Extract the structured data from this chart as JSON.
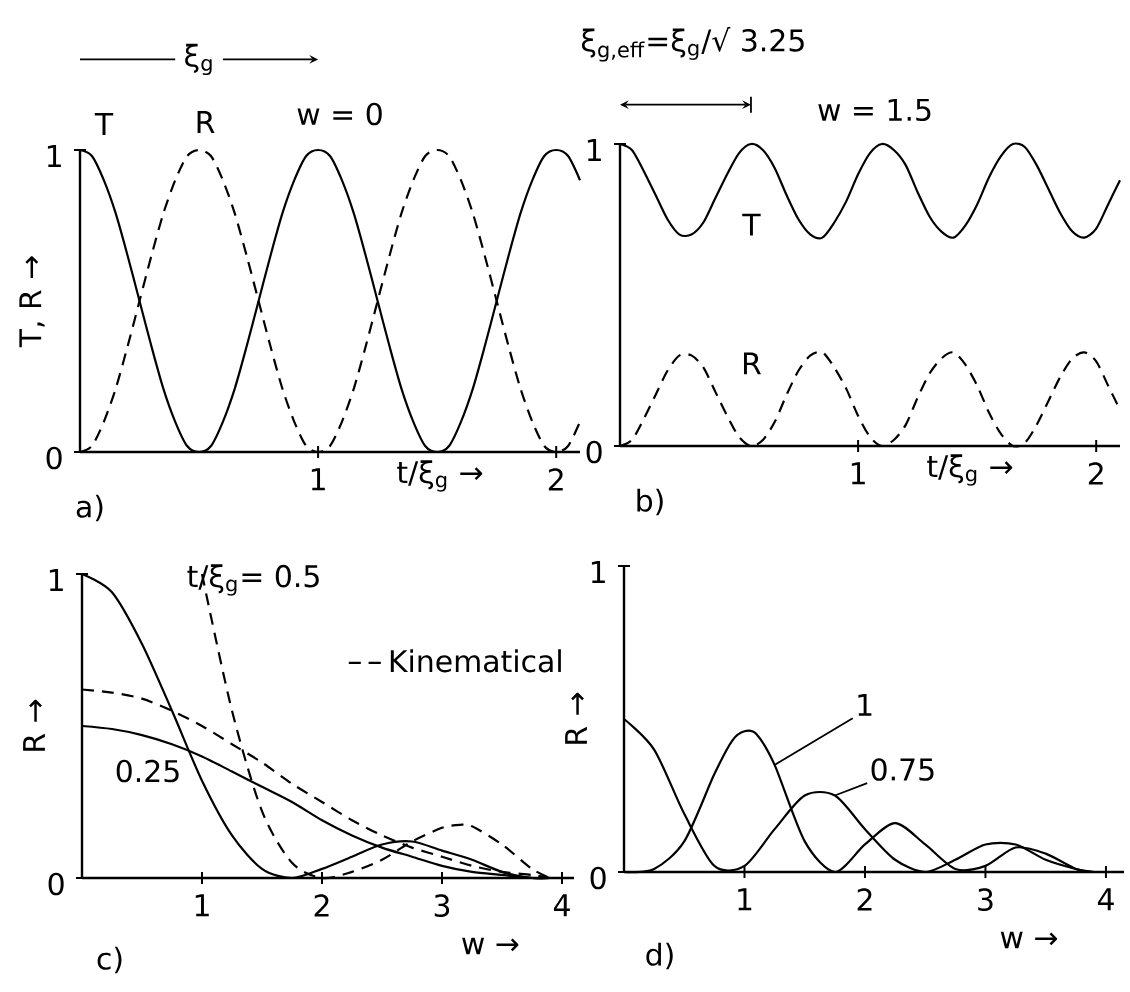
{
  "chart_data": [
    {
      "type": "line",
      "title": "w = 0",
      "xlabel": "t/ξ$_{g}$ →",
      "ylabel": "T, R →",
      "annotations": [
        "ξ$_{g}$",
        "a)"
      ],
      "xlim": [
        0,
        2.1
      ],
      "ylim": [
        0,
        1
      ],
      "xticks": [
        1,
        2
      ],
      "yticks": [
        0,
        1
      ],
      "series": [
        {
          "name": "T",
          "color": "#000000",
          "line_style": "solid",
          "x": [
            0,
            0.05,
            0.1,
            0.15,
            0.2,
            0.25,
            0.3,
            0.35,
            0.4,
            0.45,
            0.5,
            0.55,
            0.6,
            0.65,
            0.7,
            0.75,
            0.8,
            0.85,
            0.9,
            0.95,
            1,
            1.05,
            1.1,
            1.15,
            1.2,
            1.25,
            1.3,
            1.35,
            1.4,
            1.45,
            1.5,
            1.55,
            1.6,
            1.65,
            1.7,
            1.75,
            1.8,
            1.85,
            1.9,
            1.95,
            2,
            2.05,
            2.1
          ],
          "values": [
            1,
            0.98,
            0.9,
            0.79,
            0.65,
            0.5,
            0.35,
            0.21,
            0.1,
            0.02,
            0,
            0.02,
            0.1,
            0.21,
            0.35,
            0.5,
            0.65,
            0.79,
            0.9,
            0.98,
            1,
            0.98,
            0.9,
            0.79,
            0.65,
            0.5,
            0.35,
            0.21,
            0.1,
            0.02,
            0,
            0.02,
            0.1,
            0.21,
            0.35,
            0.5,
            0.65,
            0.79,
            0.9,
            0.98,
            1,
            0.98,
            0.9
          ]
        },
        {
          "name": "R",
          "color": "#000000",
          "line_style": "dashed",
          "x": [
            0,
            0.05,
            0.1,
            0.15,
            0.2,
            0.25,
            0.3,
            0.35,
            0.4,
            0.45,
            0.5,
            0.55,
            0.6,
            0.65,
            0.7,
            0.75,
            0.8,
            0.85,
            0.9,
            0.95,
            1,
            1.05,
            1.1,
            1.15,
            1.2,
            1.25,
            1.3,
            1.35,
            1.4,
            1.45,
            1.5,
            1.55,
            1.6,
            1.65,
            1.7,
            1.75,
            1.8,
            1.85,
            1.9,
            1.95,
            2,
            2.05,
            2.1
          ],
          "values": [
            0,
            0.02,
            0.1,
            0.21,
            0.35,
            0.5,
            0.65,
            0.79,
            0.9,
            0.98,
            1,
            0.98,
            0.9,
            0.79,
            0.65,
            0.5,
            0.35,
            0.21,
            0.1,
            0.02,
            0,
            0.02,
            0.1,
            0.21,
            0.35,
            0.5,
            0.65,
            0.79,
            0.9,
            0.98,
            1,
            0.98,
            0.9,
            0.79,
            0.65,
            0.5,
            0.35,
            0.21,
            0.1,
            0.02,
            0,
            0.02,
            0.1
          ]
        }
      ]
    },
    {
      "type": "line",
      "title": "w = 1.5",
      "xlabel": "t/ξ$_{g}$ →",
      "annotations": [
        "ξ$_{g,eff}$=ξ$_{g}$/√ 3.25",
        "b)"
      ],
      "xlim": [
        0,
        2.1
      ],
      "ylim": [
        0,
        1
      ],
      "xticks": [
        1,
        2
      ],
      "yticks": [
        0,
        1
      ],
      "series": [
        {
          "name": "T",
          "color": "#000000",
          "line_style": "solid",
          "x": [
            0,
            0.05,
            0.1,
            0.15,
            0.2,
            0.25,
            0.3,
            0.35,
            0.4,
            0.45,
            0.5,
            0.55,
            0.6,
            0.65,
            0.7,
            0.75,
            0.8,
            0.85,
            0.9,
            0.95,
            1,
            1.05,
            1.1,
            1.15,
            1.2,
            1.25,
            1.3,
            1.35,
            1.4,
            1.45,
            1.5,
            1.55,
            1.6,
            1.65,
            1.7,
            1.75,
            1.8,
            1.85,
            1.9,
            1.95,
            2,
            2.05,
            2.1
          ],
          "values": [
            1,
            0.98,
            0.91,
            0.83,
            0.75,
            0.7,
            0.7,
            0.74,
            0.82,
            0.9,
            0.97,
            1,
            0.98,
            0.92,
            0.83,
            0.75,
            0.7,
            0.69,
            0.74,
            0.81,
            0.9,
            0.97,
            1,
            0.98,
            0.93,
            0.84,
            0.76,
            0.71,
            0.69,
            0.73,
            0.8,
            0.89,
            0.96,
            1,
            0.99,
            0.93,
            0.85,
            0.77,
            0.71,
            0.69,
            0.72,
            0.8,
            0.88
          ]
        },
        {
          "name": "R",
          "color": "#000000",
          "line_style": "dashed",
          "x": [
            0,
            0.05,
            0.1,
            0.15,
            0.2,
            0.25,
            0.3,
            0.35,
            0.4,
            0.45,
            0.5,
            0.55,
            0.6,
            0.65,
            0.7,
            0.75,
            0.8,
            0.85,
            0.9,
            0.95,
            1,
            1.05,
            1.1,
            1.15,
            1.2,
            1.25,
            1.3,
            1.35,
            1.4,
            1.45,
            1.5,
            1.55,
            1.6,
            1.65,
            1.7,
            1.75,
            1.8,
            1.85,
            1.9,
            1.95,
            2,
            2.05,
            2.1
          ],
          "values": [
            0,
            0.02,
            0.09,
            0.17,
            0.25,
            0.3,
            0.3,
            0.26,
            0.18,
            0.1,
            0.03,
            0,
            0.02,
            0.08,
            0.17,
            0.25,
            0.3,
            0.31,
            0.26,
            0.19,
            0.1,
            0.03,
            0,
            0.02,
            0.07,
            0.16,
            0.24,
            0.29,
            0.31,
            0.27,
            0.2,
            0.11,
            0.04,
            0,
            0.01,
            0.07,
            0.15,
            0.23,
            0.29,
            0.31,
            0.28,
            0.2,
            0.12
          ]
        }
      ]
    },
    {
      "type": "line",
      "xlabel": "w →",
      "ylabel": "R →",
      "annotations": [
        "c)"
      ],
      "xlim": [
        0,
        4.1
      ],
      "ylim": [
        0,
        1
      ],
      "xticks": [
        1,
        2,
        3,
        4
      ],
      "yticks": [
        0,
        1
      ],
      "legend": "top right",
      "series": [
        {
          "name": "t/ξ$_{g}$= 0.5",
          "color": "#000000",
          "line_style": "solid",
          "x": [
            0,
            0.25,
            0.5,
            0.75,
            1,
            1.25,
            1.5,
            1.75,
            2,
            2.25,
            2.5,
            2.75,
            3,
            3.25,
            3.5,
            3.75,
            3.9
          ],
          "values": [
            1,
            0.94,
            0.77,
            0.55,
            0.32,
            0.14,
            0.03,
            0,
            0.03,
            0.07,
            0.11,
            0.12,
            0.09,
            0.06,
            0.02,
            0,
            0
          ]
        },
        {
          "name": "0.25",
          "color": "#000000",
          "line_style": "solid",
          "x": [
            0,
            0.25,
            0.5,
            0.75,
            1,
            1.25,
            1.5,
            1.75,
            2,
            2.25,
            2.5,
            2.75,
            3,
            3.25,
            3.5,
            3.75,
            3.9
          ],
          "values": [
            0.5,
            0.49,
            0.47,
            0.44,
            0.4,
            0.35,
            0.3,
            0.25,
            0.19,
            0.14,
            0.1,
            0.07,
            0.04,
            0.02,
            0.01,
            0,
            0
          ]
        },
        {
          "name": "Kinematical",
          "color": "#000000",
          "line_style": "dashed",
          "x": [
            0,
            0.25,
            0.5,
            0.75,
            1,
            1.25,
            1.5,
            1.75,
            2,
            2.25,
            2.5,
            2.75,
            3,
            3.25,
            3.5,
            3.75,
            3.9
          ],
          "values": [
            0.62,
            0.61,
            0.59,
            0.55,
            0.5,
            0.44,
            0.38,
            0.31,
            0.25,
            0.19,
            0.14,
            0.1,
            0.07,
            0.04,
            0.02,
            0.01,
            0
          ]
        },
        {
          "color": "#000000",
          "line_style": "dashed",
          "x": [
            1,
            1.25,
            1.5,
            1.75,
            2,
            2.25,
            2.5,
            2.75,
            3,
            3.15,
            3.25,
            3.5,
            3.75,
            3.9
          ],
          "values": [
            1,
            0.55,
            0.22,
            0.05,
            0,
            0.02,
            0.06,
            0.12,
            0.165,
            0.175,
            0.17,
            0.11,
            0.03,
            0
          ]
        }
      ]
    },
    {
      "type": "line",
      "xlabel": "w →",
      "ylabel": "R →",
      "annotations": [
        "d)"
      ],
      "xlim": [
        0,
        4.15
      ],
      "ylim": [
        0,
        1
      ],
      "xticks": [
        1,
        2,
        3,
        4
      ],
      "yticks": [
        0,
        1
      ],
      "series": [
        {
          "name": "1",
          "color": "#000000",
          "line_style": "solid",
          "x": [
            0,
            0.25,
            0.5,
            0.75,
            0.9,
            1,
            1.1,
            1.25,
            1.5,
            1.75,
            2,
            2.25,
            2.5,
            2.75,
            3,
            3.25,
            3.5,
            3.75,
            3.9
          ],
          "values": [
            0,
            0.01,
            0.1,
            0.32,
            0.43,
            0.46,
            0.45,
            0.35,
            0.1,
            0,
            0.09,
            0.16,
            0.09,
            0.01,
            0.02,
            0.08,
            0.06,
            0.01,
            0
          ]
        },
        {
          "name": "0.75",
          "color": "#000000",
          "line_style": "solid",
          "x": [
            0,
            0.25,
            0.5,
            0.75,
            1,
            1.25,
            1.5,
            1.75,
            2,
            2.25,
            2.5,
            2.75,
            3,
            3.25,
            3.5,
            3.75,
            3.9
          ],
          "values": [
            0.5,
            0.4,
            0.19,
            0.02,
            0.02,
            0.14,
            0.25,
            0.25,
            0.14,
            0.04,
            0,
            0.04,
            0.09,
            0.09,
            0.04,
            0.01,
            0
          ]
        }
      ]
    }
  ]
}
